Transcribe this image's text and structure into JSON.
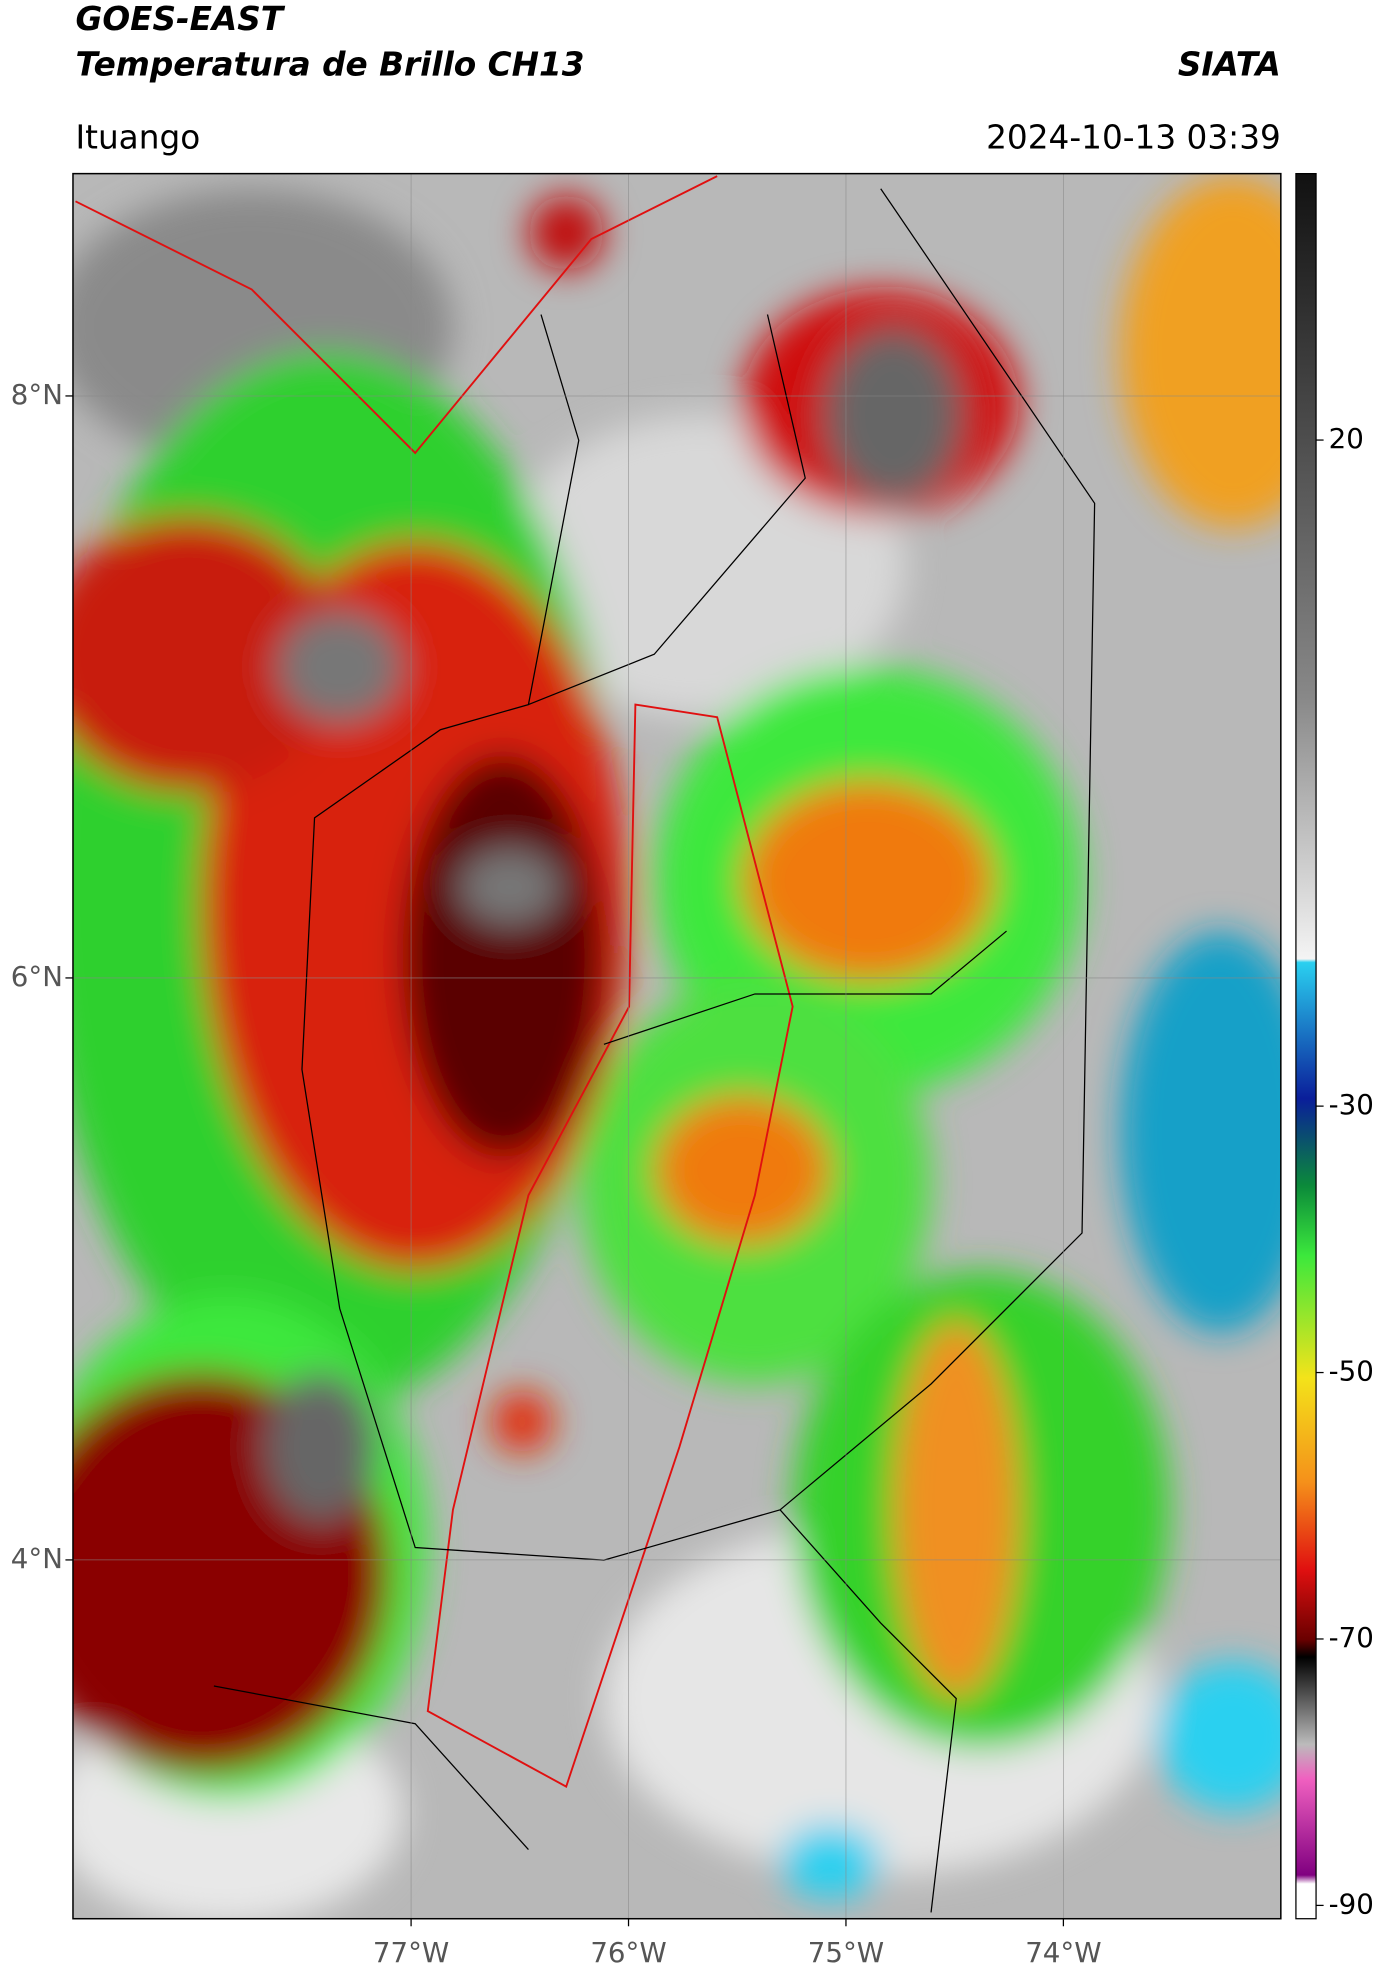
{
  "header": {
    "title": "GOES-EAST",
    "subtitle": "Temperatura de Brillo CH13",
    "brand": "SIATA",
    "location": "Ituango",
    "datetime": "2024-10-13 03:39"
  },
  "map": {
    "xlim": [
      -78.555,
      -73.0
    ],
    "ylim": [
      2.767,
      8.764
    ],
    "xticks": [
      {
        "value": -77,
        "label": "77°W"
      },
      {
        "value": -76,
        "label": "76°W"
      },
      {
        "value": -75,
        "label": "75°W"
      },
      {
        "value": -74,
        "label": "74°W"
      }
    ],
    "yticks": [
      {
        "value": 4,
        "label": "4°N"
      },
      {
        "value": 6,
        "label": "6°N"
      },
      {
        "value": 8,
        "label": "8°N"
      }
    ],
    "grid": true
  },
  "colorbar": {
    "lim": [
      -91,
      40
    ],
    "ticks": [
      20,
      -30,
      -50,
      -70,
      -90
    ]
  }
}
